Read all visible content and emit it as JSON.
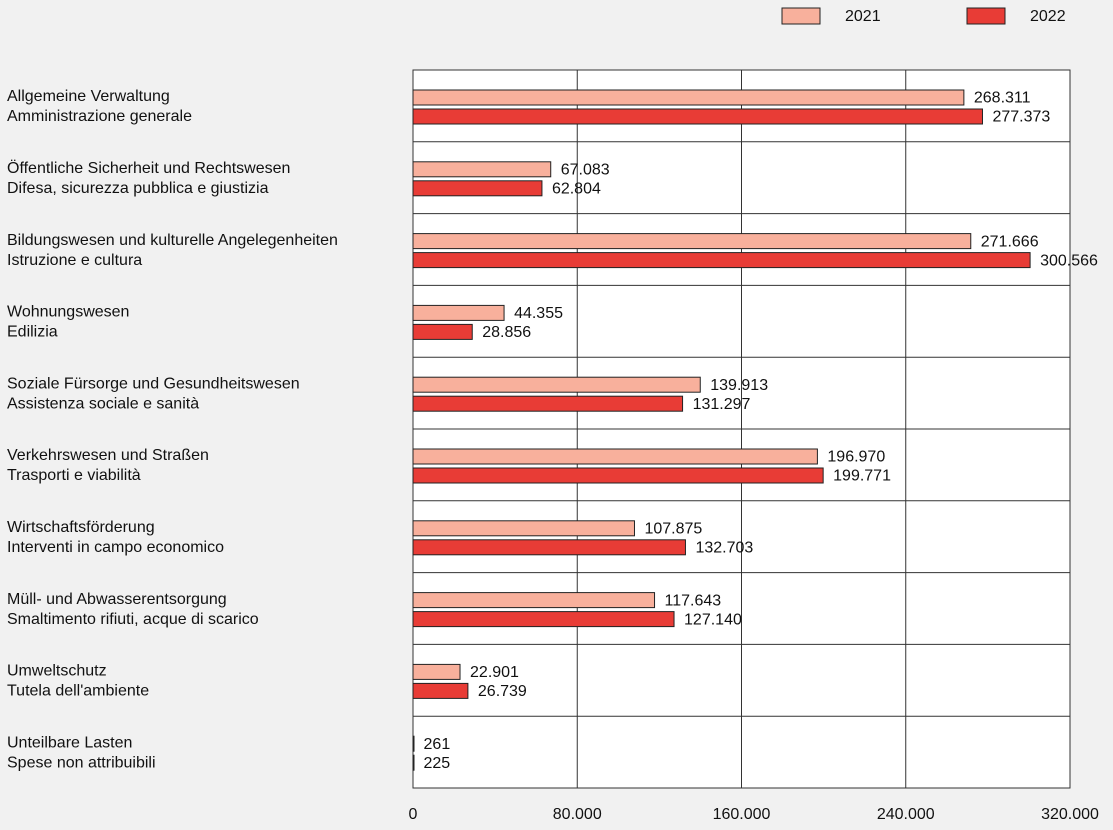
{
  "chart_data": {
    "type": "hbar",
    "categories": [
      [
        "Allgemeine Verwaltung",
        "Amministrazione generale"
      ],
      [
        "Öffentliche Sicherheit und Rechtswesen",
        "Difesa, sicurezza pubblica e giustizia"
      ],
      [
        "Bildungswesen und kulturelle Angelegenheiten",
        "Istruzione e cultura"
      ],
      [
        "Wohnungswesen",
        "Edilizia"
      ],
      [
        "Soziale Fürsorge und Gesundheitswesen",
        "Assistenza sociale e sanità"
      ],
      [
        "Verkehrswesen und Straßen",
        "Trasporti e viabilità"
      ],
      [
        "Wirtschaftsförderung",
        "Interventi in campo economico"
      ],
      [
        "Müll- und Abwasserentsorgung",
        "Smaltimento rifiuti, acque di scarico"
      ],
      [
        "Umweltschutz",
        "Tutela dell'ambiente"
      ],
      [
        "Unteilbare Lasten",
        "Spese non attribuibili"
      ]
    ],
    "series": [
      {
        "name": "2021",
        "color": "#f8b09c",
        "values": [
          268311,
          67083,
          271666,
          44355,
          139913,
          196970,
          107875,
          117643,
          22901,
          261
        ],
        "value_labels": [
          "268.311",
          "67.083",
          "271.666",
          "44.355",
          "139.913",
          "196.970",
          "107.875",
          "117.643",
          "22.901",
          "261"
        ]
      },
      {
        "name": "2022",
        "color": "#e83c36",
        "values": [
          277373,
          62804,
          300566,
          28856,
          131297,
          199771,
          132703,
          127140,
          26739,
          225
        ],
        "value_labels": [
          "277.373",
          "62.804",
          "300.566",
          "28.856",
          "131.297",
          "199.771",
          "132.703",
          "127.140",
          "26.739",
          "225"
        ]
      }
    ],
    "xlim": [
      0,
      320000
    ],
    "xticks": [
      0,
      {
        "value": 80000,
        "label": "80.000"
      },
      {
        "value": 160000,
        "label": "160.000"
      },
      {
        "value": 240000,
        "label": "240.000"
      },
      {
        "value": 320000,
        "label": "320.000"
      }
    ],
    "grid": true,
    "legend": "top-right"
  }
}
